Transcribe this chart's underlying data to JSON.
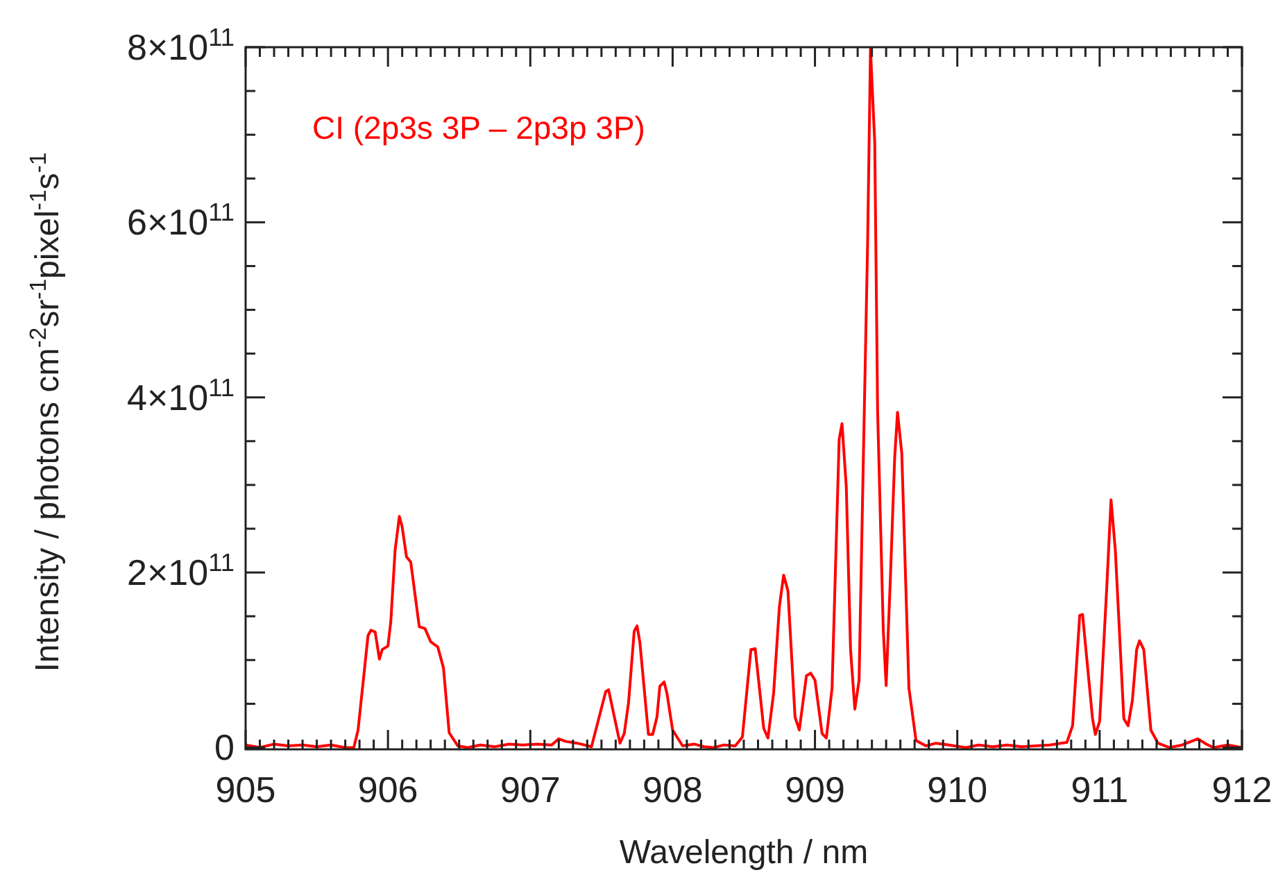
{
  "chart_data": {
    "type": "line",
    "xlabel": "Wavelength / nm",
    "ylabel": "Intensity / photons cm$^{-2}$sr$^{-1}$pixel$^{-1}$s$^{-1}$",
    "annotations": [
      "CI (2p3s 3P – 2p3p 3P)"
    ],
    "xlim": [
      905,
      912
    ],
    "ylim": [
      -2000000000.0,
      800000000000.0
    ],
    "xticks": [
      905,
      {
        "value": 905.1,
        "label": null
      },
      {
        "value": 905.2,
        "label": null
      },
      {
        "value": 905.3,
        "label": null
      },
      {
        "value": 905.4,
        "label": null
      },
      {
        "value": 905.5,
        "label": null
      },
      {
        "value": 905.6,
        "label": null
      },
      {
        "value": 905.7,
        "label": null
      },
      {
        "value": 905.8,
        "label": null
      },
      {
        "value": 905.9,
        "label": null
      },
      906,
      {
        "value": 906.1,
        "label": null
      },
      {
        "value": 906.2,
        "label": null
      },
      {
        "value": 906.3,
        "label": null
      },
      {
        "value": 906.4,
        "label": null
      },
      {
        "value": 906.5,
        "label": null
      },
      {
        "value": 906.6,
        "label": null
      },
      {
        "value": 906.7,
        "label": null
      },
      {
        "value": 906.8,
        "label": null
      },
      {
        "value": 906.9,
        "label": null
      },
      907,
      {
        "value": 907.1,
        "label": null
      },
      {
        "value": 907.2,
        "label": null
      },
      {
        "value": 907.3,
        "label": null
      },
      {
        "value": 907.4,
        "label": null
      },
      {
        "value": 907.5,
        "label": null
      },
      {
        "value": 907.6,
        "label": null
      },
      {
        "value": 907.7,
        "label": null
      },
      {
        "value": 907.8,
        "label": null
      },
      {
        "value": 907.9,
        "label": null
      },
      908,
      {
        "value": 908.1,
        "label": null
      },
      {
        "value": 908.2,
        "label": null
      },
      {
        "value": 908.3,
        "label": null
      },
      {
        "value": 908.4,
        "label": null
      },
      {
        "value": 908.5,
        "label": null
      },
      {
        "value": 908.6,
        "label": null
      },
      {
        "value": 908.7,
        "label": null
      },
      {
        "value": 908.8,
        "label": null
      },
      {
        "value": 908.9,
        "label": null
      },
      909,
      {
        "value": 909.1,
        "label": null
      },
      {
        "value": 909.2,
        "label": null
      },
      {
        "value": 909.3,
        "label": null
      },
      {
        "value": 909.4,
        "label": null
      },
      {
        "value": 909.5,
        "label": null
      },
      {
        "value": 909.6,
        "label": null
      },
      {
        "value": 909.7,
        "label": null
      },
      {
        "value": 909.8,
        "label": null
      },
      {
        "value": 909.9,
        "label": null
      },
      910,
      {
        "value": 910.1,
        "label": null
      },
      {
        "value": 910.2,
        "label": null
      },
      {
        "value": 910.3,
        "label": null
      },
      {
        "value": 910.4,
        "label": null
      },
      {
        "value": 910.5,
        "label": null
      },
      {
        "value": 910.6,
        "label": null
      },
      {
        "value": 910.7,
        "label": null
      },
      {
        "value": 910.8,
        "label": null
      },
      {
        "value": 910.9,
        "label": null
      },
      911,
      {
        "value": 911.1,
        "label": null
      },
      {
        "value": 911.2,
        "label": null
      },
      {
        "value": 911.3,
        "label": null
      },
      {
        "value": 911.4,
        "label": null
      },
      {
        "value": 911.5,
        "label": null
      },
      {
        "value": 911.6,
        "label": null
      },
      {
        "value": 911.7,
        "label": null
      },
      {
        "value": 911.8,
        "label": null
      },
      {
        "value": 911.9,
        "label": null
      },
      912
    ],
    "yticks": [
      0,
      {
        "value": 50000000000.0,
        "label": null
      },
      {
        "value": 100000000000.0,
        "label": null
      },
      {
        "value": 150000000000.0,
        "label": null
      },
      {
        "value": 200000000000.0,
        "label": "2×10$^{11}$"
      },
      {
        "value": 250000000000.0,
        "label": null
      },
      {
        "value": 300000000000.0,
        "label": null
      },
      {
        "value": 350000000000.0,
        "label": null
      },
      {
        "value": 400000000000.0,
        "label": "4×10$^{11}$"
      },
      {
        "value": 450000000000.0,
        "label": null
      },
      {
        "value": 500000000000.0,
        "label": null
      },
      {
        "value": 550000000000.0,
        "label": null
      },
      {
        "value": 600000000000.0,
        "label": "6×10$^{11}$"
      },
      {
        "value": 650000000000.0,
        "label": null
      },
      {
        "value": 700000000000.0,
        "label": null
      },
      {
        "value": 750000000000.0,
        "label": null
      },
      {
        "value": 800000000000.0,
        "label": "8×10$^{11}$"
      }
    ],
    "grid": false,
    "marker": "none",
    "line_style": "solid",
    "series": [
      {
        "color": "#ff0000",
        "x": [
          905.0,
          905.1,
          905.2,
          905.3,
          905.4,
          905.5,
          905.6,
          905.7,
          905.76,
          905.79,
          905.86,
          905.88,
          905.91,
          905.94,
          905.96,
          906.0,
          906.02,
          906.05,
          906.08,
          906.1,
          906.13,
          906.16,
          906.22,
          906.26,
          906.3,
          906.35,
          906.39,
          906.43,
          906.49,
          906.56,
          906.65,
          906.75,
          906.85,
          906.95,
          907.05,
          907.15,
          907.2,
          907.25,
          907.33,
          907.43,
          907.53,
          907.55,
          907.63,
          907.66,
          907.69,
          907.73,
          907.75,
          907.77,
          907.83,
          907.86,
          907.89,
          907.91,
          907.94,
          907.96,
          908.0,
          908.07,
          908.15,
          908.22,
          908.29,
          908.36,
          908.44,
          908.49,
          908.55,
          908.58,
          908.64,
          908.67,
          908.71,
          908.75,
          908.78,
          908.81,
          908.86,
          908.89,
          908.94,
          908.97,
          909.0,
          909.05,
          909.08,
          909.12,
          909.17,
          909.19,
          909.22,
          909.25,
          909.28,
          909.31,
          909.34,
          909.37,
          909.39,
          909.42,
          909.44,
          909.48,
          909.5,
          909.53,
          909.56,
          909.58,
          909.61,
          909.66,
          909.71,
          909.78,
          909.85,
          909.9,
          909.98,
          910.06,
          910.15,
          910.25,
          910.35,
          910.45,
          910.55,
          910.65,
          910.77,
          910.81,
          910.86,
          910.88,
          910.95,
          910.97,
          911.0,
          911.05,
          911.08,
          911.11,
          911.17,
          911.2,
          911.23,
          911.26,
          911.28,
          911.31,
          911.36,
          911.41,
          911.49,
          911.58,
          911.69,
          911.75,
          911.8,
          911.9,
          912.0
        ],
        "values": [
          3000000000.0,
          0,
          4000000000.0,
          2000000000.0,
          3000000000.0,
          1000000000.0,
          3000000000.0,
          0,
          0,
          20000000000.0,
          128000000000.0,
          134000000000.0,
          132000000000.0,
          101000000000.0,
          112000000000.0,
          116000000000.0,
          144000000000.0,
          225000000000.0,
          264000000000.0,
          252000000000.0,
          218000000000.0,
          212000000000.0,
          138000000000.0,
          136000000000.0,
          121000000000.0,
          115000000000.0,
          91000000000.0,
          17000000000.0,
          2000000000.0,
          0,
          3000000000.0,
          1000000000.0,
          4000000000.0,
          3000000000.0,
          4000000000.0,
          3000000000.0,
          10000000000.0,
          7000000000.0,
          5000000000.0,
          1000000000.0,
          64000000000.0,
          66000000000.0,
          5000000000.0,
          16000000000.0,
          51000000000.0,
          133000000000.0,
          139000000000.0,
          120000000000.0,
          15000000000.0,
          15000000000.0,
          35000000000.0,
          70000000000.0,
          75000000000.0,
          62000000000.0,
          20000000000.0,
          2000000000.0,
          4000000000.0,
          1000000000.0,
          0,
          3000000000.0,
          2000000000.0,
          12000000000.0,
          112000000000.0,
          113000000000.0,
          22000000000.0,
          11000000000.0,
          63000000000.0,
          161000000000.0,
          197000000000.0,
          179000000000.0,
          35000000000.0,
          20000000000.0,
          82000000000.0,
          85000000000.0,
          77000000000.0,
          16000000000.0,
          11000000000.0,
          68000000000.0,
          352000000000.0,
          370000000000.0,
          298000000000.0,
          112000000000.0,
          44000000000.0,
          77000000000.0,
          331000000000.0,
          577000000000.0,
          798000000000.0,
          691000000000.0,
          385000000000.0,
          134000000000.0,
          71000000000.0,
          194000000000.0,
          331000000000.0,
          383000000000.0,
          336000000000.0,
          68000000000.0,
          8000000000.0,
          2000000000.0,
          5000000000.0,
          4000000000.0,
          2000000000.0,
          0,
          3000000000.0,
          1000000000.0,
          3000000000.0,
          1000000000.0,
          2000000000.0,
          3000000000.0,
          6000000000.0,
          25000000000.0,
          151000000000.0,
          152000000000.0,
          33000000000.0,
          15000000000.0,
          30000000000.0,
          183000000000.0,
          283000000000.0,
          226000000000.0,
          33000000000.0,
          25000000000.0,
          54000000000.0,
          112000000000.0,
          122000000000.0,
          112000000000.0,
          20000000000.0,
          5000000000.0,
          0,
          3000000000.0,
          10000000000.0,
          4000000000.0,
          0,
          3000000000.0,
          0
        ]
      }
    ]
  }
}
